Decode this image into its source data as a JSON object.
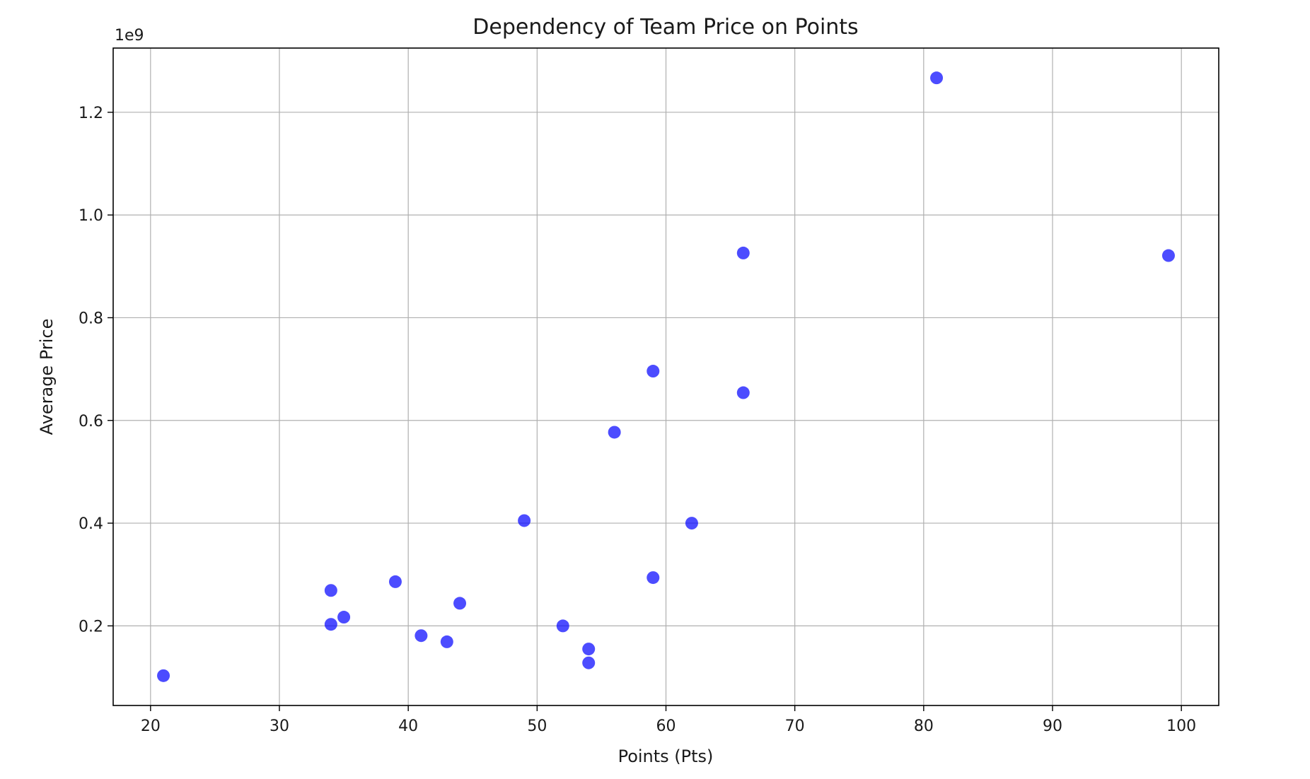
{
  "chart_data": {
    "type": "scatter",
    "title": "Dependency of Team Price on Points",
    "xlabel": "Points (Pts)",
    "ylabel": "Average Price",
    "y_offset_label": "1e9",
    "xlim": [
      17.1,
      102.9
    ],
    "ylim": [
      0.045,
      1.325
    ],
    "x_ticks": [
      20,
      30,
      40,
      50,
      60,
      70,
      80,
      90,
      100
    ],
    "x_tick_labels": [
      "20",
      "30",
      "40",
      "50",
      "60",
      "70",
      "80",
      "90",
      "100"
    ],
    "y_ticks": [
      0.2,
      0.4,
      0.6,
      0.8,
      1.0,
      1.2
    ],
    "y_tick_labels": [
      "0.2",
      "0.4",
      "0.6",
      "0.8",
      "1.0",
      "1.2"
    ],
    "grid": true,
    "marker_color": "#0000ff",
    "marker_alpha": 0.7,
    "points": [
      {
        "x": 21,
        "y": 0.103
      },
      {
        "x": 34,
        "y": 0.269
      },
      {
        "x": 34,
        "y": 0.203
      },
      {
        "x": 35,
        "y": 0.217
      },
      {
        "x": 39,
        "y": 0.286
      },
      {
        "x": 41,
        "y": 0.181
      },
      {
        "x": 43,
        "y": 0.169
      },
      {
        "x": 44,
        "y": 0.244
      },
      {
        "x": 49,
        "y": 0.405
      },
      {
        "x": 52,
        "y": 0.2
      },
      {
        "x": 54,
        "y": 0.155
      },
      {
        "x": 54,
        "y": 0.128
      },
      {
        "x": 56,
        "y": 0.577
      },
      {
        "x": 59,
        "y": 0.696
      },
      {
        "x": 59,
        "y": 0.294
      },
      {
        "x": 62,
        "y": 0.4
      },
      {
        "x": 66,
        "y": 0.926
      },
      {
        "x": 66,
        "y": 0.654
      },
      {
        "x": 81,
        "y": 1.267
      },
      {
        "x": 99,
        "y": 0.921
      }
    ]
  }
}
